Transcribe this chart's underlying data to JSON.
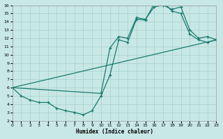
{
  "xlabel": "Humidex (Indice chaleur)",
  "background_color": "#c8e8e5",
  "grid_color": "#a8d0cc",
  "line_color": "#1a7a6e",
  "xlim": [
    0,
    23
  ],
  "ylim": [
    2,
    16
  ],
  "xticks": [
    0,
    1,
    2,
    3,
    4,
    5,
    6,
    7,
    8,
    9,
    10,
    11,
    12,
    13,
    14,
    15,
    16,
    17,
    18,
    19,
    20,
    21,
    22,
    23
  ],
  "yticks": [
    2,
    3,
    4,
    5,
    6,
    7,
    8,
    9,
    10,
    11,
    12,
    13,
    14,
    15,
    16
  ],
  "line1_x": [
    0,
    1,
    2,
    3,
    4,
    5,
    6,
    7,
    8,
    9,
    10,
    11,
    12,
    13,
    14,
    15,
    16,
    17,
    18,
    19,
    20,
    21,
    22,
    23
  ],
  "line1_y": [
    6.0,
    5.0,
    4.5,
    4.2,
    4.2,
    3.5,
    3.2,
    3.0,
    2.7,
    3.2,
    5.0,
    7.5,
    11.8,
    11.5,
    14.3,
    14.2,
    16.2,
    16.4,
    15.3,
    15.0,
    12.5,
    11.8,
    11.5,
    11.8
  ],
  "line2_x": [
    0,
    10,
    11,
    12,
    13,
    14,
    15,
    16,
    17,
    18,
    19,
    20,
    21,
    22,
    23
  ],
  "line2_y": [
    6.0,
    5.3,
    10.8,
    12.2,
    12.0,
    14.5,
    14.3,
    15.8,
    16.0,
    15.5,
    15.8,
    13.0,
    12.0,
    12.2,
    11.8
  ],
  "line3_x": [
    0,
    23
  ],
  "line3_y": [
    6.0,
    11.8
  ]
}
